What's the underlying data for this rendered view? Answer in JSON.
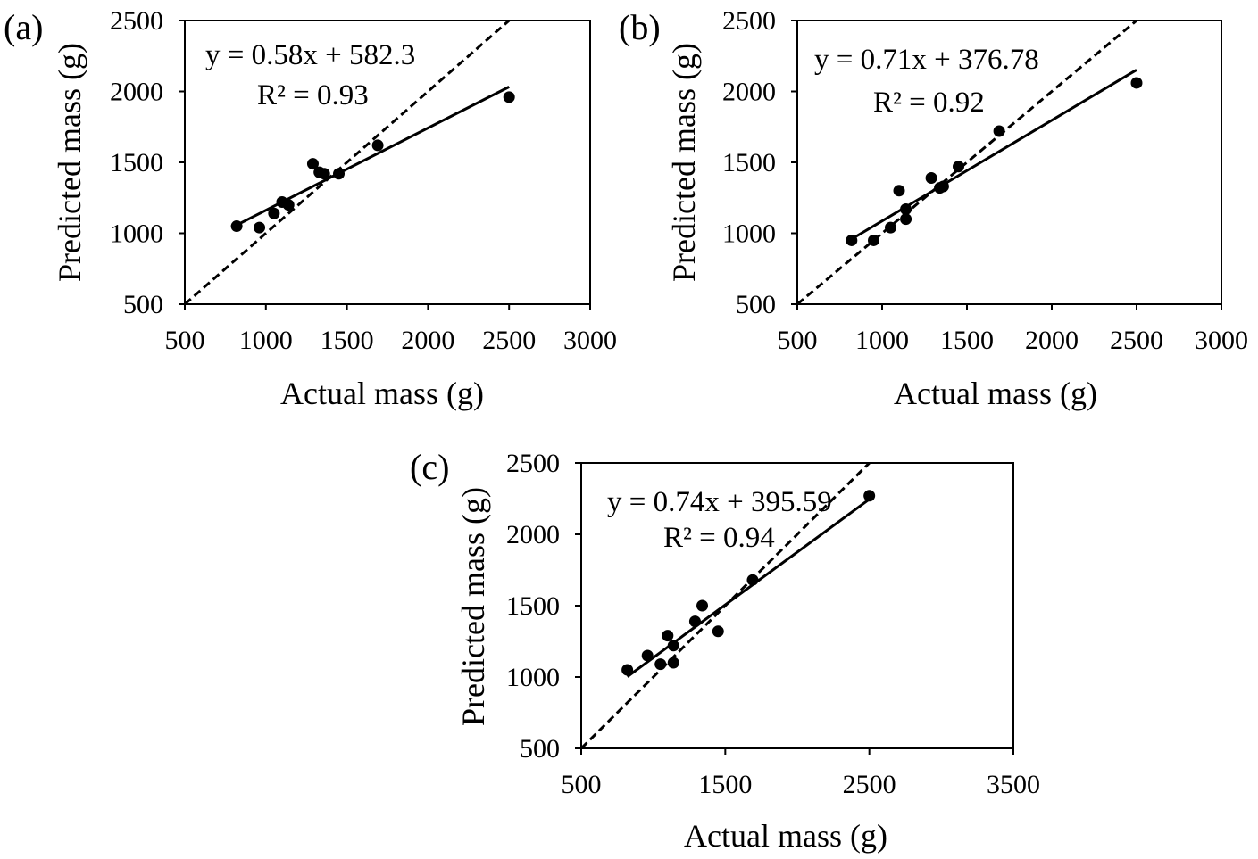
{
  "chart_data": [
    {
      "panel_label": "(a)",
      "type": "scatter",
      "xlabel": "Actual mass (g)",
      "ylabel": "Predicted mass (g)",
      "xlim": [
        500,
        3000
      ],
      "ylim": [
        500,
        2500
      ],
      "xticks": [
        500,
        1000,
        1500,
        2000,
        2500,
        3000
      ],
      "yticks": [
        500,
        1000,
        1500,
        2000,
        2500
      ],
      "points": [
        [
          820,
          1050
        ],
        [
          960,
          1040
        ],
        [
          1050,
          1140
        ],
        [
          1100,
          1220
        ],
        [
          1140,
          1200
        ],
        [
          1290,
          1490
        ],
        [
          1330,
          1430
        ],
        [
          1360,
          1420
        ],
        [
          1450,
          1420
        ],
        [
          1690,
          1620
        ],
        [
          2500,
          1960
        ]
      ],
      "fit": {
        "slope": 0.58,
        "intercept": 582.3,
        "x_range": [
          820,
          2500
        ]
      },
      "equation": "y = 0.58x + 582.3",
      "r2": "R² = 0.93",
      "reference_line": "y = x"
    },
    {
      "panel_label": "(b)",
      "type": "scatter",
      "xlabel": "Actual mass (g)",
      "ylabel": "Predicted mass (g)",
      "xlim": [
        500,
        3000
      ],
      "ylim": [
        500,
        2500
      ],
      "xticks": [
        500,
        1000,
        1500,
        2000,
        2500,
        3000
      ],
      "yticks": [
        500,
        1000,
        1500,
        2000,
        2500
      ],
      "points": [
        [
          820,
          950
        ],
        [
          950,
          950
        ],
        [
          1050,
          1040
        ],
        [
          1100,
          1300
        ],
        [
          1140,
          1170
        ],
        [
          1140,
          1100
        ],
        [
          1290,
          1390
        ],
        [
          1340,
          1320
        ],
        [
          1360,
          1330
        ],
        [
          1450,
          1470
        ],
        [
          1690,
          1720
        ],
        [
          2500,
          2060
        ]
      ],
      "fit": {
        "slope": 0.71,
        "intercept": 376.78,
        "x_range": [
          820,
          2500
        ]
      },
      "equation": "y = 0.71x + 376.78",
      "r2": "R² = 0.92",
      "reference_line": "y = x"
    },
    {
      "panel_label": "(c)",
      "type": "scatter",
      "xlabel": "Actual mass (g)",
      "ylabel": "Predicted mass (g)",
      "xlim": [
        500,
        3500
      ],
      "ylim": [
        500,
        2500
      ],
      "xticks": [
        500,
        1500,
        2500,
        3500
      ],
      "yticks": [
        500,
        1000,
        1500,
        2000,
        2500
      ],
      "points": [
        [
          820,
          1050
        ],
        [
          960,
          1150
        ],
        [
          1050,
          1090
        ],
        [
          1100,
          1290
        ],
        [
          1140,
          1220
        ],
        [
          1140,
          1100
        ],
        [
          1290,
          1390
        ],
        [
          1340,
          1500
        ],
        [
          1450,
          1320
        ],
        [
          1690,
          1680
        ],
        [
          2500,
          2270
        ]
      ],
      "fit": {
        "slope": 0.74,
        "intercept": 395.59,
        "x_range": [
          820,
          2500
        ]
      },
      "equation": "y = 0.74x + 395.59",
      "r2": "R² = 0.94",
      "reference_line": "y = x"
    }
  ]
}
